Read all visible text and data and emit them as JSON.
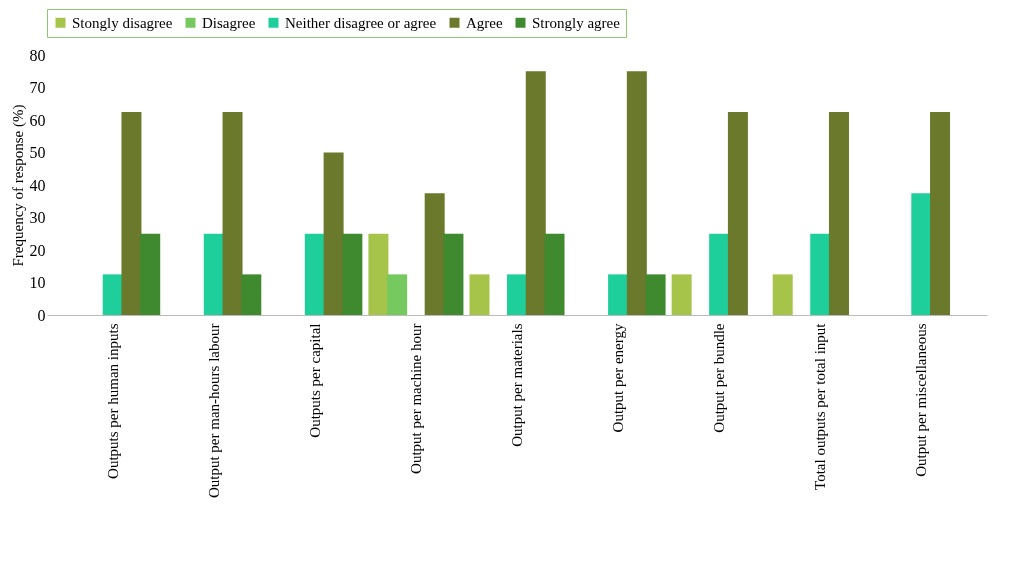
{
  "chart_data": {
    "type": "bar",
    "ylabel": "Frequency of response (%)",
    "categories": [
      "Outputs per human inputs",
      "Output per man-hours labour",
      "Outputs per capital",
      "Output per machine hour",
      "Output per materials",
      "Output per energy",
      "Output per bundle",
      "Total outputs per total input",
      "Output per miscellaneous"
    ],
    "series": [
      {
        "name": "Stongly disagree",
        "color": "#a6c44a",
        "values": [
          null,
          null,
          null,
          25,
          12.5,
          null,
          12.5,
          12.5,
          null
        ]
      },
      {
        "name": "Disagree",
        "color": "#76c95e",
        "values": [
          null,
          null,
          null,
          12.5,
          null,
          null,
          null,
          null,
          null
        ]
      },
      {
        "name": "Neither disagree or agree",
        "color": "#1ecf9b",
        "values": [
          12.5,
          25,
          25,
          null,
          12.5,
          12.5,
          25,
          25,
          37.5
        ]
      },
      {
        "name": "Agree",
        "color": "#6a792b",
        "values": [
          62.5,
          62.5,
          50,
          37.5,
          75,
          75,
          62.5,
          62.5,
          62.5
        ]
      },
      {
        "name": "Strongly agree",
        "color": "#3f8a2f",
        "values": [
          25,
          12.5,
          25,
          25,
          25,
          12.5,
          null,
          null,
          null
        ]
      }
    ],
    "ylim": [
      0,
      80
    ],
    "yticks": [
      0,
      10,
      20,
      30,
      40,
      50,
      60,
      70,
      80
    ],
    "legend": "top"
  }
}
